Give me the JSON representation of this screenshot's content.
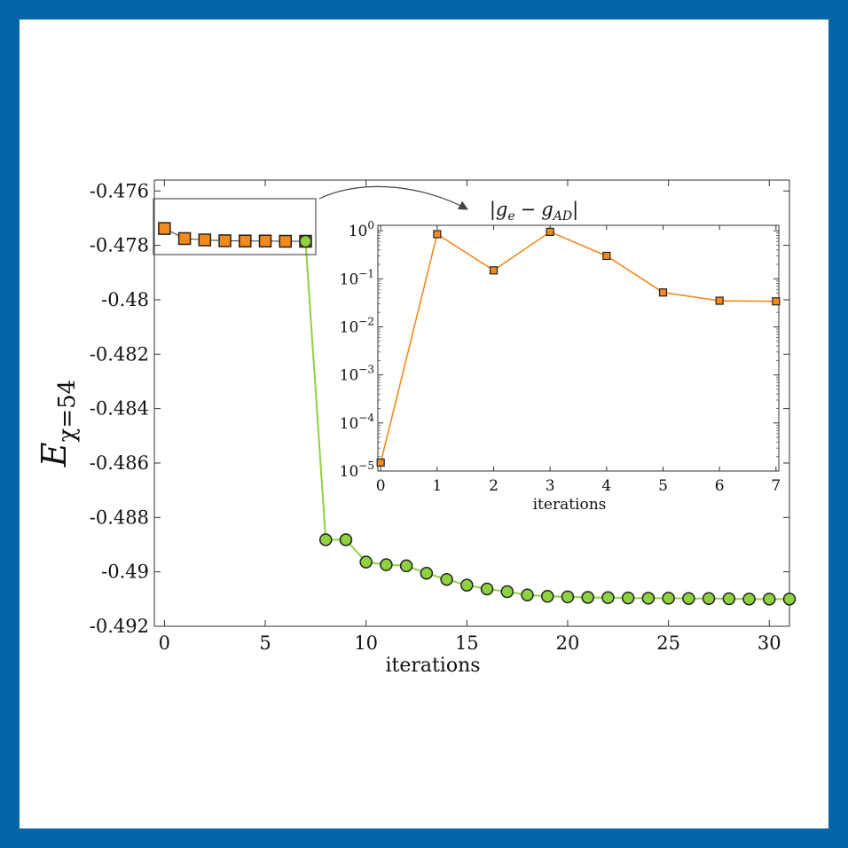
{
  "chart_data": [
    {
      "type": "scatter",
      "title": "",
      "xlabel": "iterations",
      "ylabel": "E",
      "ylabel_subscript": "χ=54",
      "xlim": [
        -0.5,
        31
      ],
      "ylim": [
        -0.492,
        -0.4756
      ],
      "x_ticks": [
        0,
        5,
        10,
        15,
        20,
        25,
        30
      ],
      "y_ticks": [
        -0.476,
        -0.478,
        -0.48,
        -0.482,
        -0.484,
        -0.486,
        -0.488,
        -0.49,
        -0.492
      ],
      "x_tick_labels": [
        "0",
        "5",
        "10",
        "15",
        "20",
        "25",
        "30"
      ],
      "y_tick_labels": [
        "-0.476",
        "-0.478",
        "-0.48",
        "-0.482",
        "-0.484",
        "-0.486",
        "-0.488",
        "-0.49",
        "-0.492"
      ],
      "grid": false,
      "series": [
        {
          "marker": "square",
          "color": "#f28a1e",
          "x": [
            0,
            1,
            2,
            3,
            4,
            5,
            6,
            7
          ],
          "y": [
            -0.47738,
            -0.47775,
            -0.4778,
            -0.47783,
            -0.47784,
            -0.47784,
            -0.47785,
            -0.47785
          ]
        },
        {
          "marker": "circle",
          "color": "#8fd13e",
          "line_color": "#8fd13e",
          "x": [
            7,
            8,
            9,
            10,
            11,
            12,
            13,
            14,
            15,
            16,
            17,
            18,
            19,
            20,
            21,
            22,
            23,
            24,
            25,
            26,
            27,
            28,
            29,
            30,
            31
          ],
          "y": [
            -0.47785,
            -0.48882,
            -0.48882,
            -0.48964,
            -0.48974,
            -0.48978,
            -0.49005,
            -0.49028,
            -0.49049,
            -0.49063,
            -0.49073,
            -0.49085,
            -0.4909,
            -0.49092,
            -0.49094,
            -0.49095,
            -0.49096,
            -0.49097,
            -0.49097,
            -0.49098,
            -0.49098,
            -0.49099,
            -0.491,
            -0.491,
            -0.491
          ]
        }
      ]
    },
    {
      "type": "line",
      "title": "|g_e − g_AD|",
      "title_parts": {
        "g1": "g",
        "sub1": "e",
        "minus": "−",
        "g2": "g",
        "sub2": "AD"
      },
      "xlabel": "iterations",
      "ylabel": "",
      "yscale": "log",
      "xlim": [
        -0.05,
        7.05
      ],
      "ylim": [
        1e-05,
        1.3
      ],
      "x_ticks": [
        0,
        1,
        2,
        3,
        4,
        5,
        6,
        7
      ],
      "x_tick_labels": [
        "0",
        "1",
        "2",
        "3",
        "4",
        "5",
        "6",
        "7"
      ],
      "y_ticks": [
        1,
        0.1,
        0.01,
        0.001,
        0.0001,
        1e-05
      ],
      "y_tick_labels": [
        {
          "base": "10",
          "exp": "0"
        },
        {
          "base": "10",
          "exp": "−1"
        },
        {
          "base": "10",
          "exp": "−2"
        },
        {
          "base": "10",
          "exp": "−3"
        },
        {
          "base": "10",
          "exp": "−4"
        },
        {
          "base": "10",
          "exp": "−5"
        }
      ],
      "grid": false,
      "series": [
        {
          "marker": "square",
          "color": "#f28a1e",
          "x": [
            0,
            1,
            2,
            3,
            4,
            5,
            6,
            7
          ],
          "y": [
            1.5e-05,
            0.85,
            0.15,
            0.95,
            0.3,
            0.052,
            0.035,
            0.034
          ]
        }
      ]
    }
  ]
}
